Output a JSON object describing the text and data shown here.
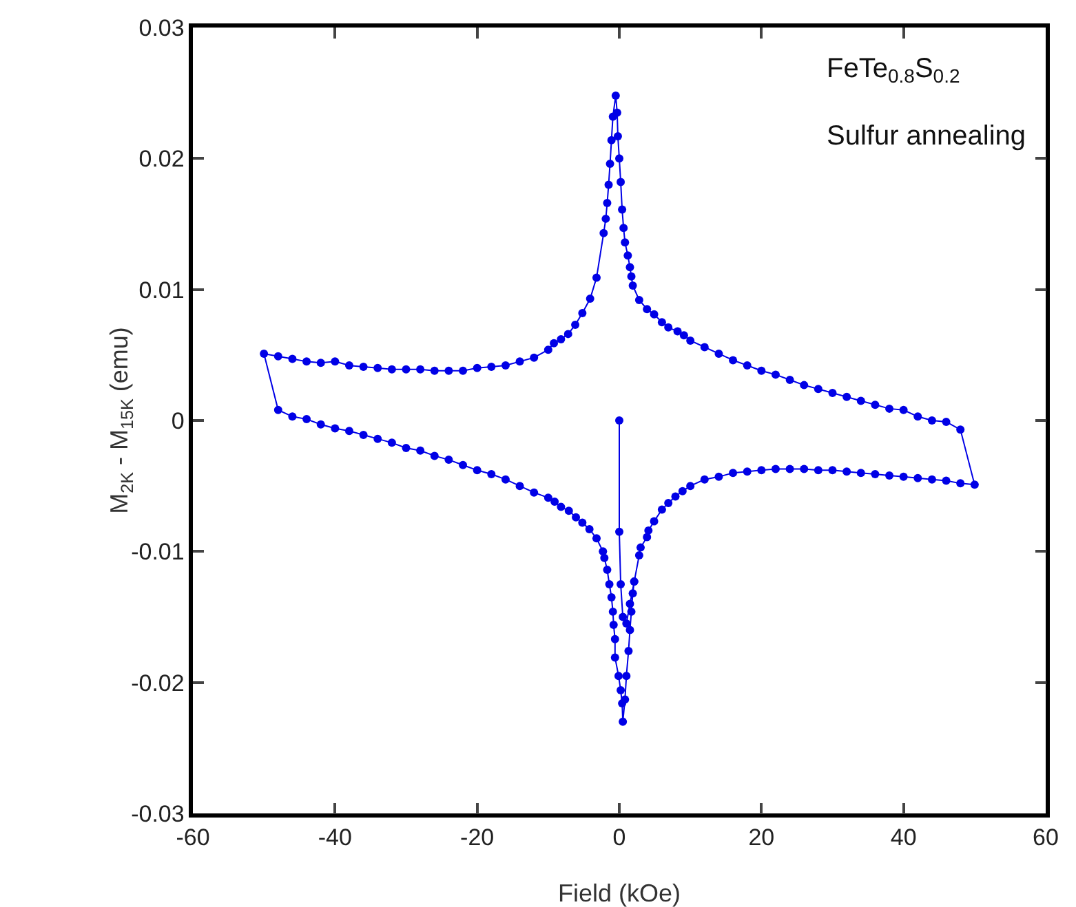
{
  "chart_data": {
    "type": "line",
    "xlabel": "Field (kOe)",
    "ylabel": "M$_{2K}$ - M$_{15K}$ (emu)",
    "annotations": [
      "FeTe$_{0.8}$S$_{0.2}$",
      "Sulfur annealing"
    ],
    "xlim": [
      -60,
      60
    ],
    "xticks": [
      -60,
      -40,
      -20,
      0,
      20,
      40,
      60
    ],
    "ylim": [
      -0.03,
      0.03
    ],
    "yticks": [
      -0.03,
      -0.02,
      -0.01,
      0,
      0.01,
      0.02,
      0.03
    ],
    "grid": false,
    "marker": "circle",
    "line_style": "solid",
    "series": [
      {
        "color": "#0000e6",
        "x": [
          0,
          0,
          0.2,
          0.5,
          1,
          1.5,
          2.1,
          2.8,
          3.0,
          3.9,
          4.1,
          4.9,
          6.0,
          6.9,
          7.9,
          8.9,
          10,
          12,
          14,
          16,
          18,
          20,
          22,
          24,
          26,
          28,
          30,
          32,
          34,
          36,
          38,
          40,
          42,
          44,
          46,
          48,
          50,
          48,
          46,
          44,
          42,
          40,
          38,
          36,
          34,
          32,
          30,
          28,
          26,
          24,
          22,
          20,
          18,
          16,
          14,
          12,
          10,
          9.1,
          8.2,
          6.9,
          6.0,
          4.9,
          3.9,
          2.8,
          1.9,
          1.7,
          1.5,
          1.2,
          0.8,
          0.6,
          0.4,
          0.2,
          0,
          -0.2,
          -0.3,
          -0.5,
          -0.9,
          -1.1,
          -1.3,
          -1.5,
          -1.7,
          -1.9,
          -2.2,
          -3.2,
          -4.1,
          -5.2,
          -6.2,
          -7.2,
          -8.2,
          -9.2,
          -10,
          -12,
          -14,
          -16,
          -18,
          -20,
          -22,
          -24,
          -26,
          -28,
          -30,
          -32,
          -34,
          -36,
          -38,
          -40,
          -42,
          -44,
          -46,
          -48,
          -50,
          -48,
          -46,
          -44,
          -42,
          -40,
          -38,
          -36,
          -34,
          -32,
          -30,
          -28,
          -26,
          -24,
          -22,
          -20,
          -18,
          -16,
          -14,
          -12,
          -10,
          -9.1,
          -8.2,
          -7.1,
          -6.1,
          -5.2,
          -4.2,
          -3.2,
          -2.3,
          -2.1,
          -1.7,
          -1.4,
          -1.1,
          -0.9,
          -0.8,
          -0.6,
          -0.6,
          -0.1,
          0.2,
          0.4,
          0.5,
          0.8,
          1.0,
          1.3,
          1.5,
          1.7,
          1.9,
          2.1
        ],
        "values": [
          0,
          -0.0085,
          -0.0125,
          -0.015,
          -0.0155,
          -0.014,
          -0.0123,
          -0.0103,
          -0.0097,
          -0.0089,
          -0.0084,
          -0.0077,
          -0.0068,
          -0.0063,
          -0.0058,
          -0.0054,
          -0.005,
          -0.0045,
          -0.0043,
          -0.004,
          -0.0039,
          -0.0038,
          -0.0037,
          -0.0037,
          -0.0037,
          -0.0038,
          -0.0038,
          -0.0039,
          -0.004,
          -0.0041,
          -0.0042,
          -0.0043,
          -0.0044,
          -0.0045,
          -0.0046,
          -0.0048,
          -0.0049,
          -0.0007,
          -0.0001,
          0,
          0.0003,
          0.0008,
          0.0009,
          0.0012,
          0.0015,
          0.0018,
          0.0021,
          0.0024,
          0.0027,
          0.0031,
          0.0035,
          0.0038,
          0.0042,
          0.0046,
          0.0051,
          0.0056,
          0.0061,
          0.0065,
          0.0068,
          0.0071,
          0.0075,
          0.0081,
          0.0085,
          0.0092,
          0.0103,
          0.011,
          0.0117,
          0.0126,
          0.0136,
          0.0147,
          0.0161,
          0.0182,
          0.02,
          0.0217,
          0.0235,
          0.0248,
          0.0232,
          0.0214,
          0.0196,
          0.018,
          0.0166,
          0.0154,
          0.0143,
          0.0109,
          0.0093,
          0.0082,
          0.0073,
          0.0066,
          0.0062,
          0.0059,
          0.0054,
          0.0048,
          0.0045,
          0.0042,
          0.0041,
          0.004,
          0.0038,
          0.0038,
          0.0038,
          0.0039,
          0.0039,
          0.0039,
          0.004,
          0.0041,
          0.0042,
          0.0045,
          0.0044,
          0.0045,
          0.0047,
          0.0049,
          0.0051,
          0.0008,
          0.0003,
          0.0001,
          -0.0003,
          -0.0006,
          -0.0008,
          -0.0011,
          -0.0014,
          -0.0017,
          -0.0021,
          -0.0023,
          -0.0027,
          -0.003,
          -0.0034,
          -0.0038,
          -0.0041,
          -0.0045,
          -0.005,
          -0.0055,
          -0.0059,
          -0.0062,
          -0.0066,
          -0.0069,
          -0.0074,
          -0.0078,
          -0.0083,
          -0.009,
          -0.01,
          -0.0105,
          -0.0114,
          -0.0125,
          -0.0135,
          -0.0146,
          -0.0156,
          -0.0167,
          -0.0181,
          -0.0195,
          -0.0206,
          -0.0216,
          -0.023,
          -0.0213,
          -0.0195,
          -0.0176,
          -0.016,
          -0.0146,
          -0.0132,
          -0.0123
        ]
      }
    ]
  }
}
